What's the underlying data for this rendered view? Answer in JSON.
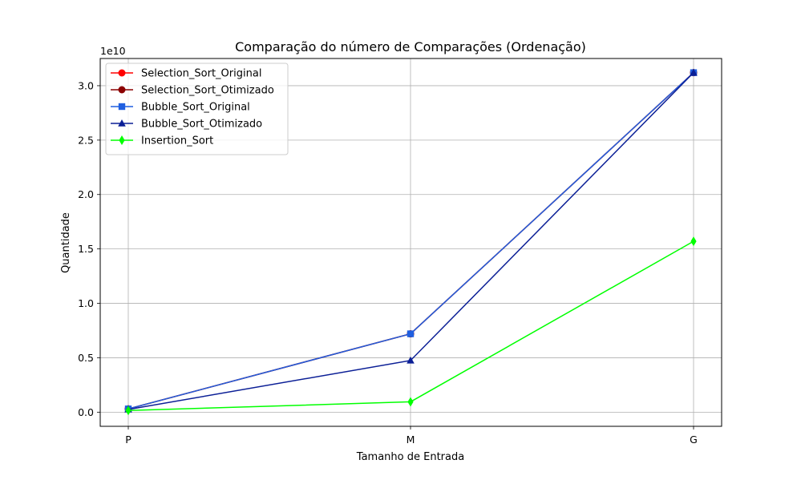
{
  "chart_data": {
    "type": "line",
    "title": "Comparação do número de Comparações (Ordenação)",
    "xlabel": "Tamanho de Entrada",
    "ylabel": "Quantidade",
    "y_offset_label": "1e10",
    "categories": [
      "P",
      "M",
      "G"
    ],
    "ylim": [
      -0.13,
      3.25
    ],
    "y_scale_factor": 10000000000,
    "yticks": [
      0.0,
      0.5,
      1.0,
      1.5,
      2.0,
      2.5,
      3.0
    ],
    "ytick_labels": [
      "0.0",
      "0.5",
      "1.0",
      "1.5",
      "2.0",
      "2.5",
      "3.0"
    ],
    "grid": true,
    "legend_position": "top-left",
    "series": [
      {
        "name": "Selection_Sort_Original",
        "values": [
          0.03,
          0.72,
          3.12
        ],
        "color": "#ff0000",
        "marker": "circle"
      },
      {
        "name": "Selection_Sort_Otimizado",
        "values": [
          0.03,
          0.72,
          3.12
        ],
        "color": "#8b0000",
        "marker": "circle"
      },
      {
        "name": "Bubble_Sort_Original",
        "values": [
          0.03,
          0.72,
          3.12
        ],
        "color": "#1f5fe0",
        "marker": "square"
      },
      {
        "name": "Bubble_Sort_Otimizado",
        "values": [
          0.025,
          0.475,
          3.12
        ],
        "color": "#0b1f96",
        "marker": "triangle"
      },
      {
        "name": "Insertion_Sort",
        "values": [
          0.015,
          0.095,
          1.57
        ],
        "color": "#00ff00",
        "marker": "diamond"
      }
    ]
  }
}
